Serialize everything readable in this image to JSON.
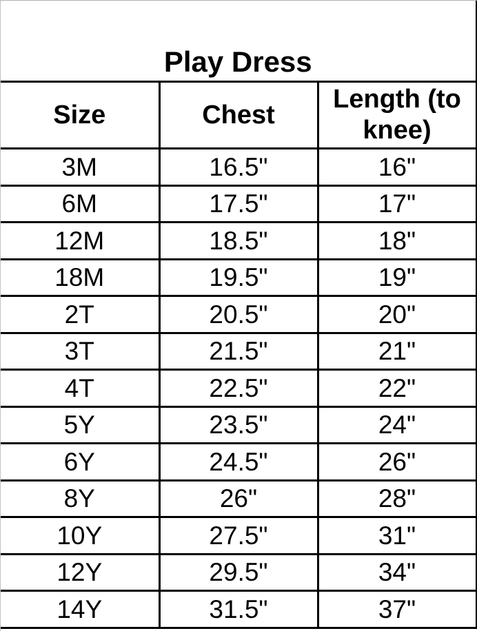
{
  "chart_data": {
    "type": "table",
    "title": "Play Dress",
    "columns": [
      "Size",
      "Chest",
      "Length (to knee)"
    ],
    "rows": [
      [
        "3M",
        "16.5\"",
        "16\""
      ],
      [
        "6M",
        "17.5\"",
        "17\""
      ],
      [
        "12M",
        "18.5\"",
        "18\""
      ],
      [
        "18M",
        "19.5\"",
        "19\""
      ],
      [
        "2T",
        "20.5\"",
        "20\""
      ],
      [
        "3T",
        "21.5\"",
        "21\""
      ],
      [
        "4T",
        "22.5\"",
        "22\""
      ],
      [
        "5Y",
        "23.5\"",
        "24\""
      ],
      [
        "6Y",
        "24.5\"",
        "26\""
      ],
      [
        "8Y",
        "26\"",
        "28\""
      ],
      [
        "10Y",
        "27.5\"",
        "31\""
      ],
      [
        "12Y",
        "29.5\"",
        "34\""
      ],
      [
        "14Y",
        "31.5\"",
        "37\""
      ]
    ],
    "layout": {
      "grid": "on",
      "title_position": "top-center-spanning-row"
    },
    "colors": {
      "border": "#000000",
      "text": "#000000",
      "background": "#ffffff",
      "crop_edge_gray": "#b8b8b8"
    }
  }
}
